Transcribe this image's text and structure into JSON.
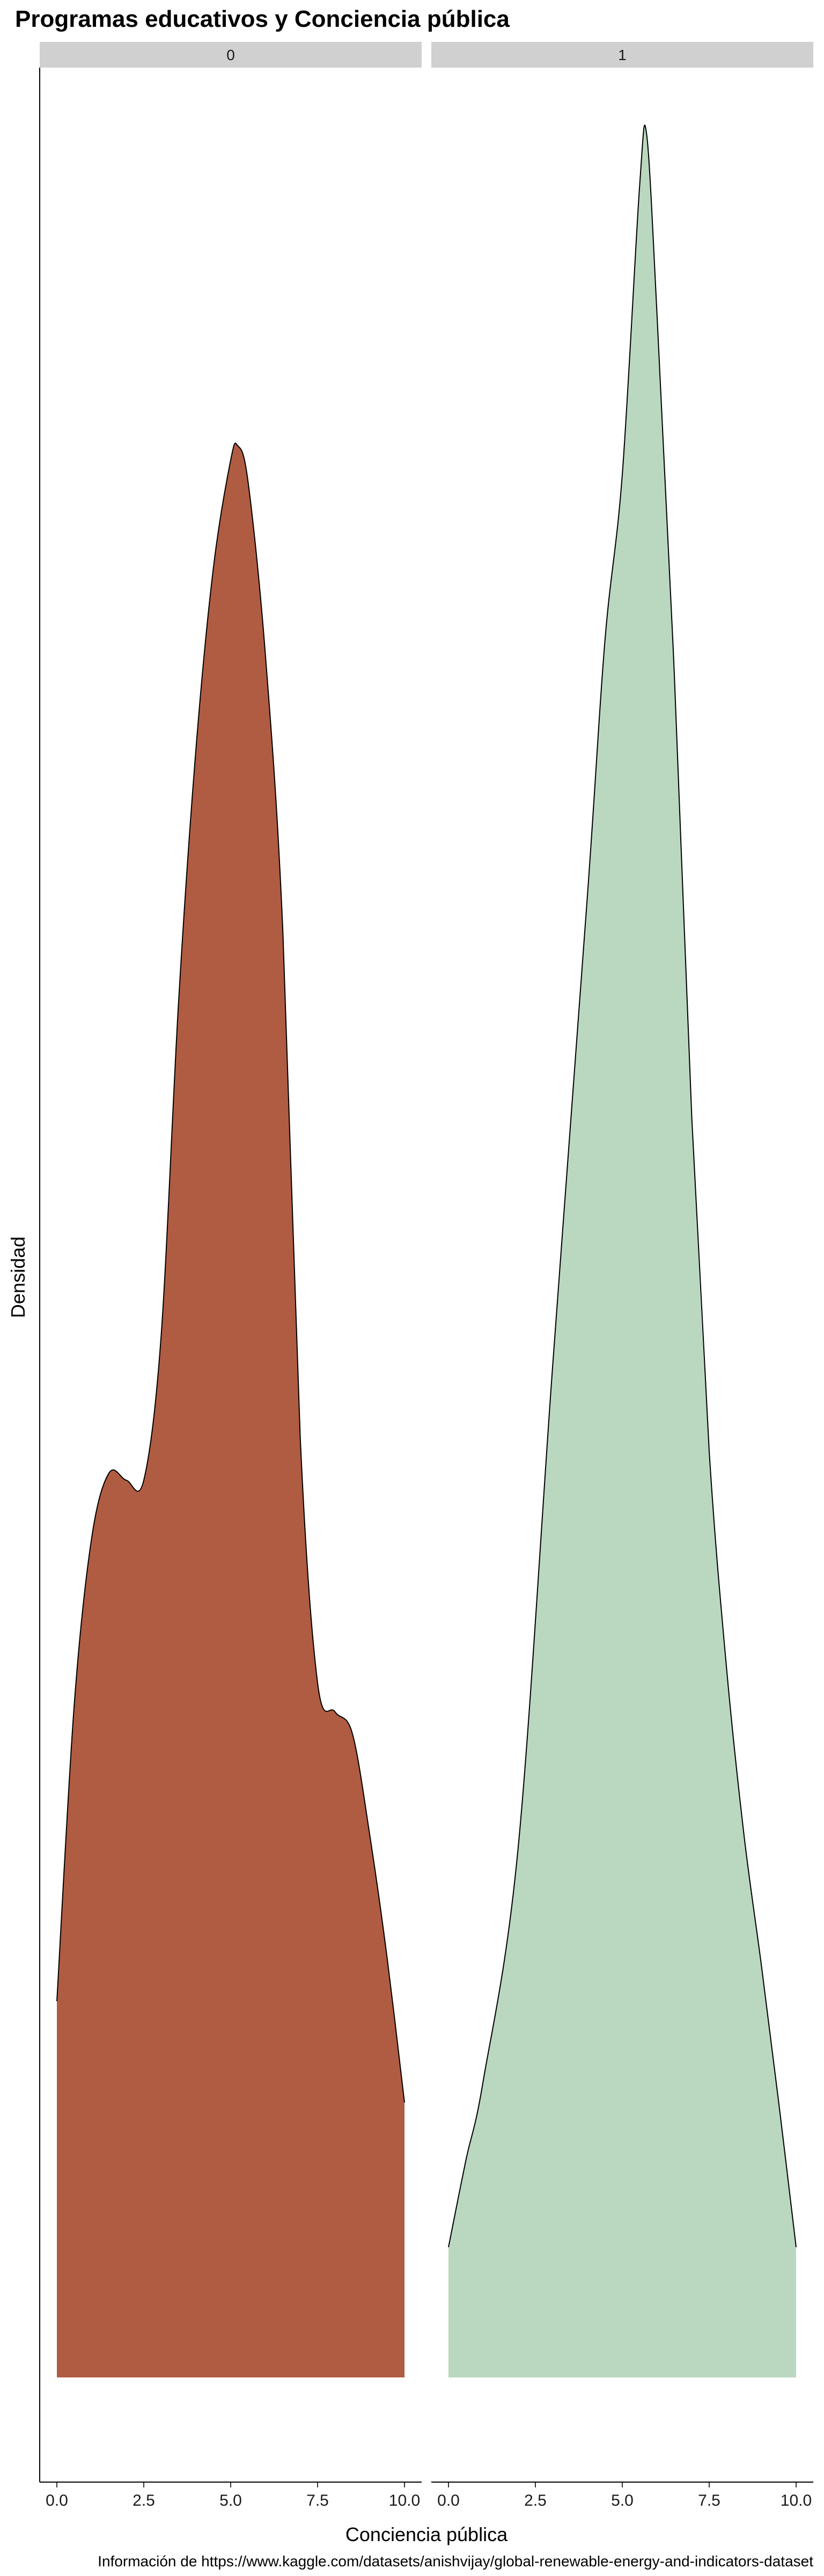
{
  "chart_data": {
    "type": "area",
    "title": "Programas educativos y Conciencia pública",
    "xlabel": "Conciencia pública",
    "ylabel": "Densidad",
    "caption": "Información de https://www.kaggle.com/datasets/anishvijay/global-renewable-energy-and-indicators-dataset",
    "xlim": [
      0,
      10
    ],
    "ylim": [
      0,
      0.305
    ],
    "x_ticks": [
      "0.0",
      "2.5",
      "5.0",
      "7.5",
      "10.0"
    ],
    "y_axis_ticks_shown": false,
    "grid": false,
    "legend": "none",
    "facets": [
      {
        "label": "0",
        "color": "#B05C42",
        "series": [
          {
            "x": 0.0,
            "y": 0.052
          },
          {
            "x": 0.5,
            "y": 0.093
          },
          {
            "x": 1.0,
            "y": 0.116
          },
          {
            "x": 1.5,
            "y": 0.125
          },
          {
            "x": 2.0,
            "y": 0.124
          },
          {
            "x": 2.5,
            "y": 0.124
          },
          {
            "x": 3.0,
            "y": 0.144
          },
          {
            "x": 3.5,
            "y": 0.19
          },
          {
            "x": 4.0,
            "y": 0.225
          },
          {
            "x": 4.5,
            "y": 0.25
          },
          {
            "x": 5.0,
            "y": 0.265
          },
          {
            "x": 5.2,
            "y": 0.267
          },
          {
            "x": 5.5,
            "y": 0.262
          },
          {
            "x": 6.0,
            "y": 0.238
          },
          {
            "x": 6.5,
            "y": 0.2
          },
          {
            "x": 7.0,
            "y": 0.13
          },
          {
            "x": 7.5,
            "y": 0.096
          },
          {
            "x": 8.0,
            "y": 0.092
          },
          {
            "x": 8.5,
            "y": 0.089
          },
          {
            "x": 9.0,
            "y": 0.075
          },
          {
            "x": 9.5,
            "y": 0.058
          },
          {
            "x": 10.0,
            "y": 0.038
          }
        ]
      },
      {
        "label": "1",
        "color": "#BAD8BF",
        "series": [
          {
            "x": 0.0,
            "y": 0.018
          },
          {
            "x": 0.5,
            "y": 0.03
          },
          {
            "x": 1.0,
            "y": 0.041
          },
          {
            "x": 2.0,
            "y": 0.073
          },
          {
            "x": 3.0,
            "y": 0.14
          },
          {
            "x": 4.0,
            "y": 0.205
          },
          {
            "x": 4.5,
            "y": 0.24
          },
          {
            "x": 5.0,
            "y": 0.263
          },
          {
            "x": 5.5,
            "y": 0.303
          },
          {
            "x": 5.7,
            "y": 0.31
          },
          {
            "x": 6.0,
            "y": 0.285
          },
          {
            "x": 6.5,
            "y": 0.235
          },
          {
            "x": 7.0,
            "y": 0.174
          },
          {
            "x": 7.5,
            "y": 0.128
          },
          {
            "x": 8.0,
            "y": 0.098
          },
          {
            "x": 8.5,
            "y": 0.075
          },
          {
            "x": 9.0,
            "y": 0.057
          },
          {
            "x": 9.5,
            "y": 0.038
          },
          {
            "x": 10.0,
            "y": 0.018
          }
        ]
      }
    ]
  }
}
